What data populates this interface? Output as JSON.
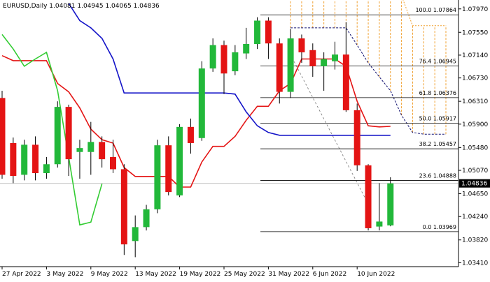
{
  "chart_data": {
    "type": "candlestick",
    "title": "EURUSD,Daily",
    "categories": [
      "27 Apr 2022",
      null,
      null,
      null,
      "3 May 2022",
      null,
      null,
      null,
      "9 May 2022",
      null,
      null,
      null,
      "13 May 2022",
      null,
      null,
      null,
      "19 May 2022",
      null,
      null,
      null,
      "25 May 2022",
      null,
      null,
      null,
      "31 May 2022",
      null,
      null,
      null,
      "6 Jun 2022",
      null,
      null,
      null,
      "10 Jun 2022",
      null,
      null,
      null,
      null,
      null,
      null,
      null,
      null
    ],
    "open": [
      1.0637,
      1.0556,
      1.0499,
      1.0553,
      1.0502,
      1.0518,
      1.0621,
      1.054,
      1.054,
      1.0558,
      1.0531,
      1.0509,
      1.038,
      1.0405,
      1.0437,
      1.0552,
      1.0462,
      1.0585,
      1.0565,
      1.069,
      1.0732,
      1.0685,
      1.0717,
      1.0734,
      1.0776,
      1.0735,
      1.0648,
      1.0744,
      1.0723,
      1.0694,
      1.0703,
      1.0715,
      1.0615,
      1.0516,
      1.0406,
      1.04081,
      null,
      null,
      null,
      null,
      null
    ],
    "high": [
      1.065,
      1.0566,
      1.0562,
      1.0568,
      1.0531,
      1.0631,
      1.0625,
      1.0562,
      1.0594,
      1.0568,
      1.0562,
      1.0518,
      1.0426,
      1.0445,
      1.0562,
      1.0568,
      1.059,
      1.06,
      1.0703,
      1.0744,
      1.074,
      1.0732,
      1.0763,
      1.0782,
      1.0782,
      1.0744,
      1.0761,
      1.0751,
      1.0735,
      1.0719,
      1.0738,
      1.0773,
      1.0627,
      1.0518,
      1.0484,
      1.04945,
      null,
      null,
      null,
      null,
      null
    ],
    "low": [
      1.0492,
      1.0484,
      1.0489,
      1.0489,
      1.0492,
      1.0512,
      1.0497,
      1.0492,
      1.0499,
      1.0512,
      1.0502,
      1.0355,
      1.0351,
      1.0399,
      1.043,
      1.0462,
      1.0459,
      1.0537,
      1.056,
      1.0684,
      1.0644,
      1.0678,
      1.0707,
      1.0725,
      1.0707,
      1.0627,
      1.0637,
      1.07,
      1.0675,
      1.065,
      1.0688,
      1.0612,
      1.0506,
      1.0399,
      1.0399,
      1.04065,
      null,
      null,
      null,
      null,
      null
    ],
    "close": [
      1.0499,
      1.0497,
      1.0553,
      1.0502,
      1.0518,
      1.0621,
      1.0527,
      1.0547,
      1.0558,
      1.0527,
      1.0509,
      1.0374,
      1.0405,
      1.0437,
      1.0552,
      1.0468,
      1.0585,
      1.0556,
      1.069,
      1.0732,
      1.0681,
      1.0719,
      1.0734,
      1.0776,
      1.0735,
      1.0648,
      1.0744,
      1.0719,
      1.0694,
      1.0707,
      1.0715,
      1.0615,
      1.0516,
      1.0403,
      1.0415,
      1.04836,
      null,
      null,
      null,
      null,
      null
    ],
    "up_color": "#22b83a",
    "down_color": "#e41414",
    "lines": [
      {
        "color": "#e41414",
        "values": [
          1.0713,
          1.0704,
          1.0704,
          1.0704,
          1.0704,
          1.0663,
          1.0648,
          1.0619,
          1.0581,
          1.0562,
          1.0556,
          1.0512,
          1.0496,
          1.0496,
          1.0496,
          1.0496,
          1.0477,
          1.0477,
          1.0522,
          1.055,
          1.055,
          1.0568,
          1.0597,
          1.0622,
          1.0622,
          1.065,
          1.0663,
          1.0707,
          1.0707,
          1.0707,
          1.0707,
          1.0694,
          1.0631,
          1.0587,
          1.0585,
          1.0586,
          null,
          null,
          null,
          null,
          null
        ]
      },
      {
        "color": "#1414c8",
        "values": [
          null,
          null,
          null,
          null,
          null,
          null,
          1.0807,
          1.0776,
          1.0763,
          1.0744,
          1.0707,
          1.0646,
          1.0646,
          1.0646,
          1.0646,
          1.0646,
          1.0646,
          1.0646,
          1.0646,
          1.0646,
          1.0646,
          1.0644,
          1.0612,
          1.0587,
          1.0575,
          1.057,
          1.057,
          1.057,
          1.057,
          1.057,
          1.057,
          1.057,
          1.057,
          1.057,
          1.057,
          1.057,
          null,
          null,
          null,
          null,
          null
        ]
      },
      {
        "color": "#33cc33",
        "values": [
          1.0751,
          1.0725,
          1.0694,
          1.0707,
          1.0719,
          1.065,
          1.0531,
          1.0409,
          1.0414,
          1.0483,
          null,
          null,
          null,
          null,
          null,
          null,
          null,
          null,
          null,
          null,
          null,
          null,
          null,
          null,
          null,
          null,
          null,
          null,
          null,
          null,
          null,
          null,
          null,
          null,
          null,
          null,
          null,
          null,
          null,
          null,
          null
        ]
      }
    ],
    "cloud": {
      "color": "#f0a030",
      "span_a_color": "#101070",
      "span_a": [
        null,
        null,
        null,
        null,
        null,
        null,
        null,
        null,
        null,
        null,
        null,
        null,
        null,
        null,
        null,
        null,
        null,
        null,
        null,
        null,
        null,
        null,
        null,
        null,
        null,
        null,
        1.0763,
        1.0763,
        1.0763,
        1.0763,
        1.0763,
        1.0763,
        1.0732,
        1.07,
        1.0675,
        1.065,
        1.0606,
        1.0575,
        1.0572,
        1.0572,
        1.0572
      ],
      "span_b": [
        null,
        null,
        null,
        null,
        null,
        null,
        null,
        null,
        null,
        null,
        null,
        null,
        null,
        null,
        null,
        null,
        null,
        null,
        null,
        null,
        null,
        null,
        null,
        null,
        null,
        null,
        1.0821,
        1.0821,
        1.0821,
        1.0821,
        1.0821,
        1.0821,
        1.0821,
        1.0821,
        1.0821,
        1.0821,
        1.0821,
        1.0767,
        1.0767,
        1.0767,
        1.0767
      ]
    },
    "fib_levels": [
      {
        "value": 1.07864,
        "label": "100.0 1.07864"
      },
      {
        "value": 1.06945,
        "label": "76.4 1.06945"
      },
      {
        "value": 1.06376,
        "label": "61.8 1.06376"
      },
      {
        "value": 1.05917,
        "label": "50.0 1.05917"
      },
      {
        "value": 1.05457,
        "label": "38.2 1.05457"
      },
      {
        "value": 1.04888,
        "label": "23.6 1.04888"
      },
      {
        "value": 1.03969,
        "label": "0.0 1.03969"
      }
    ],
    "ylim": [
      1.0334,
      1.0813
    ],
    "yticks": [
      {
        "value": 1.0797,
        "label": "1.07970"
      },
      {
        "value": 1.0755,
        "label": "1.07550"
      },
      {
        "value": 1.0714,
        "label": "1.07140"
      },
      {
        "value": 1.0673,
        "label": "1.06730"
      },
      {
        "value": 1.0631,
        "label": "1.06310"
      },
      {
        "value": 1.059,
        "label": "1.05900"
      },
      {
        "value": 1.0548,
        "label": "1.05480"
      },
      {
        "value": 1.0507,
        "label": "1.05070"
      },
      {
        "value": 1.0465,
        "label": "1.04650"
      },
      {
        "value": 1.0424,
        "label": "1.04240"
      },
      {
        "value": 1.0382,
        "label": "1.03820"
      },
      {
        "value": 1.0341,
        "label": "1.03410"
      }
    ]
  }
}
